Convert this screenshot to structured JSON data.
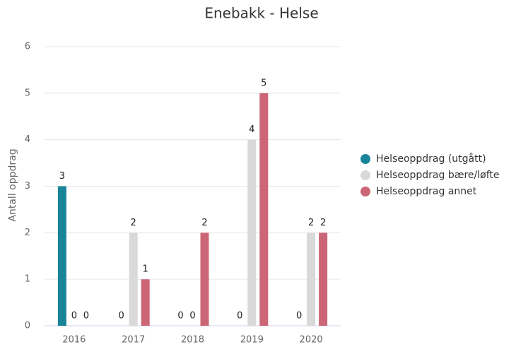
{
  "chart_data": {
    "type": "bar",
    "title": "Enebakk - Helse",
    "y_label": "Antall oppdrag",
    "categories": [
      "2016",
      "2017",
      "2018",
      "2019",
      "2020"
    ],
    "series": [
      {
        "name": "Helseoppdrag (utgått)",
        "color": "#1a8599",
        "values": [
          3,
          0,
          0,
          0,
          0
        ]
      },
      {
        "name": "Helseoppdrag bære/løfte",
        "color": "#d9d9d9",
        "values": [
          0,
          2,
          0,
          4,
          2
        ]
      },
      {
        "name": "Helseoppdrag annet",
        "color": "#cc6677",
        "values": [
          0,
          1,
          2,
          5,
          2
        ]
      }
    ],
    "ylim": [
      0,
      6
    ],
    "yticks": [
      0,
      1,
      2,
      3,
      4,
      5,
      6
    ],
    "grid": true,
    "legend": "right"
  }
}
